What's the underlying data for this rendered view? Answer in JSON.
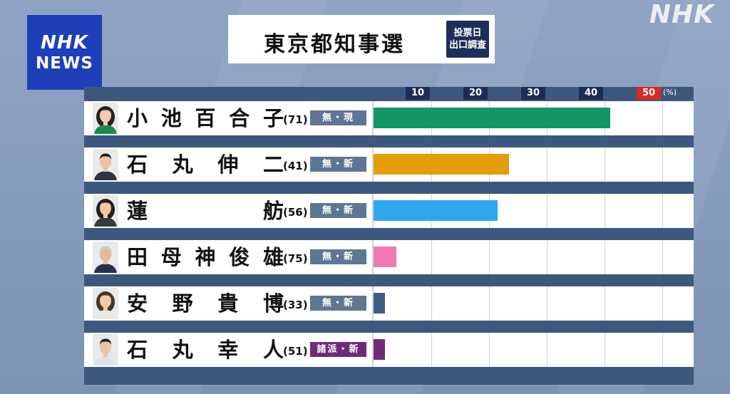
{
  "watermark": "NHK",
  "logo": {
    "line1": "NHK",
    "line2": "NEWS"
  },
  "title": "東京都知事選",
  "badge": {
    "line1": "投票日",
    "line2": "出口調査"
  },
  "colors": {
    "incumbent_badge": "#5e7593",
    "minor_party_badge": "#6f2b78"
  },
  "chart_data": {
    "type": "bar",
    "orientation": "horizontal",
    "xlim": [
      0,
      50
    ],
    "ticks": [
      "10",
      "20",
      "30",
      "40",
      "50"
    ],
    "tick_values": [
      10,
      20,
      30,
      40,
      50
    ],
    "unit": "(%)",
    "grid": true,
    "series": [
      {
        "values": [
          41,
          23.5,
          21.5,
          4,
          2,
          2
        ]
      }
    ],
    "categories": [
      "小池百合子",
      "石丸伸二",
      "蓮舫",
      "田母神俊雄",
      "安野貴博",
      "石丸幸人"
    ],
    "candidates": [
      {
        "chars": [
          "小",
          "池",
          "百",
          "合",
          "子"
        ],
        "age": "(71)",
        "party": "無・現",
        "party_color": "#5e7593",
        "bar_color": "#139566",
        "value": 41,
        "avatar": "woman-green"
      },
      {
        "chars": [
          "石",
          "丸",
          "伸",
          "二"
        ],
        "age": "(41)",
        "party": "無・新",
        "party_color": "#5e7593",
        "bar_color": "#e19e08",
        "value": 23.5,
        "avatar": "man-suit"
      },
      {
        "chars": [
          "蓮",
          "舫"
        ],
        "age": "(56)",
        "party": "無・新",
        "party_color": "#5e7593",
        "bar_color": "#2ea7ef",
        "value": 21.5,
        "avatar": "woman-dark"
      },
      {
        "chars": [
          "田",
          "母",
          "神",
          "俊",
          "雄"
        ],
        "age": "(75)",
        "party": "無・新",
        "party_color": "#5e7593",
        "bar_color": "#ef7bb1",
        "value": 4,
        "avatar": "man-elder"
      },
      {
        "chars": [
          "安",
          "野",
          "貴",
          "博"
        ],
        "age": "(33)",
        "party": "無・新",
        "party_color": "#5e7593",
        "bar_color": "#3f5d82",
        "value": 2,
        "avatar": "man-long-hair"
      },
      {
        "chars": [
          "石",
          "丸",
          "幸",
          "人"
        ],
        "age": "(51)",
        "party": "諸派・新",
        "party_color": "#6f2b78",
        "bar_color": "#6f2b78",
        "value": 2,
        "avatar": "man-shirt"
      }
    ]
  }
}
